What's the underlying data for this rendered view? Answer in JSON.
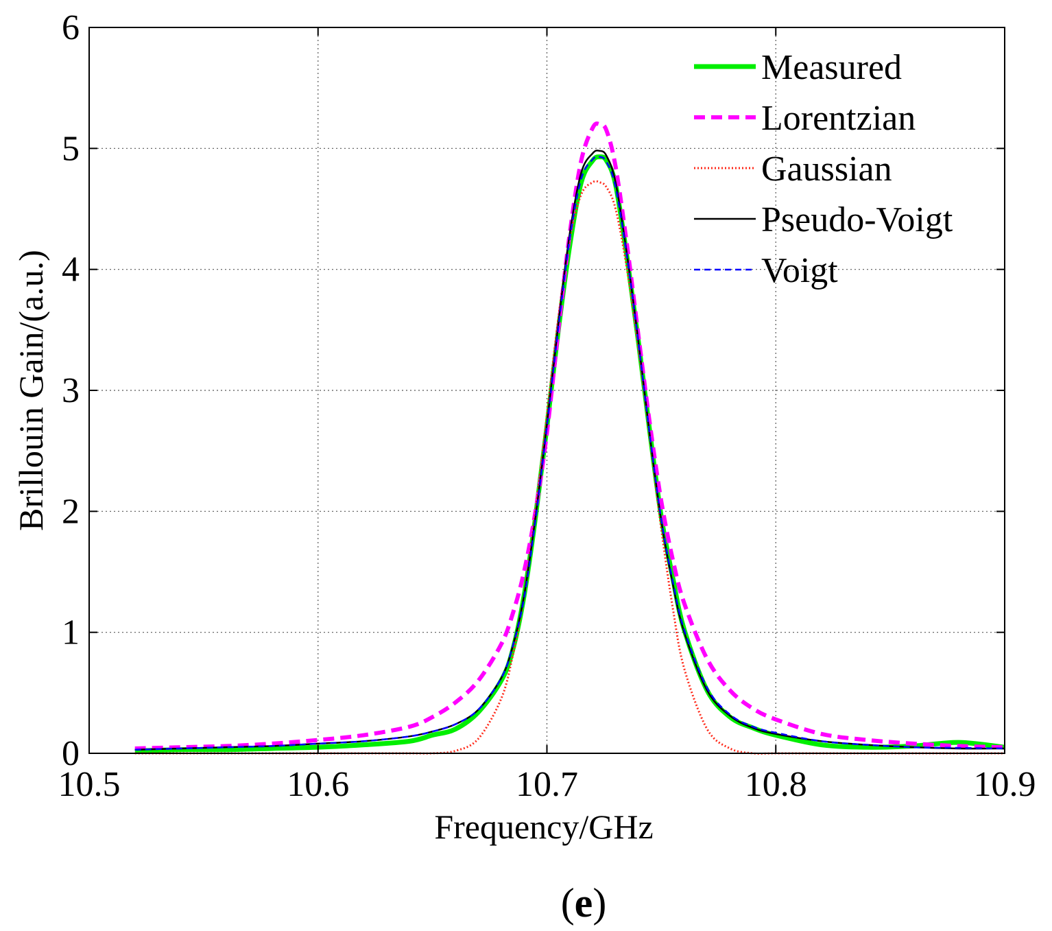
{
  "chart_data": {
    "type": "line",
    "title": "",
    "panel_label": "e",
    "xlabel": "Frequency/GHz",
    "ylabel": "Brillouin Gain/(a.u.)",
    "xlim": [
      10.5,
      10.9
    ],
    "ylim": [
      0,
      6
    ],
    "xticks": [
      10.5,
      10.6,
      10.7,
      10.8,
      10.9
    ],
    "xtick_labels": [
      "10.5",
      "10.6",
      "10.7",
      "10.8",
      "10.9"
    ],
    "yticks": [
      0,
      1,
      2,
      3,
      4,
      5,
      6
    ],
    "ytick_labels": [
      "0",
      "1",
      "2",
      "3",
      "4",
      "5",
      "6"
    ],
    "grid": true,
    "legend_position": "top-right",
    "x": [
      10.52,
      10.54,
      10.56,
      10.58,
      10.6,
      10.62,
      10.64,
      10.65,
      10.66,
      10.67,
      10.68,
      10.685,
      10.69,
      10.695,
      10.7,
      10.705,
      10.71,
      10.715,
      10.72,
      10.723,
      10.726,
      10.73,
      10.735,
      10.74,
      10.745,
      10.75,
      10.755,
      10.76,
      10.77,
      10.78,
      10.79,
      10.8,
      10.82,
      10.84,
      10.86,
      10.88,
      10.9
    ],
    "series": [
      {
        "name": "Measured",
        "color": "#00ee00",
        "style": "solid-thick",
        "values": [
          0.02,
          0.03,
          0.03,
          0.04,
          0.05,
          0.07,
          0.1,
          0.15,
          0.2,
          0.34,
          0.6,
          0.85,
          1.3,
          1.95,
          2.7,
          3.5,
          4.2,
          4.72,
          4.9,
          4.93,
          4.9,
          4.7,
          4.1,
          3.4,
          2.65,
          1.95,
          1.45,
          1.02,
          0.52,
          0.3,
          0.21,
          0.15,
          0.07,
          0.05,
          0.06,
          0.09,
          0.05
        ]
      },
      {
        "name": "Lorentzian",
        "color": "#ff00ff",
        "style": "dashed",
        "values": [
          0.04,
          0.05,
          0.06,
          0.08,
          0.11,
          0.15,
          0.22,
          0.3,
          0.42,
          0.6,
          0.9,
          1.15,
          1.5,
          2.0,
          2.65,
          3.5,
          4.3,
          4.9,
          5.17,
          5.2,
          5.15,
          4.85,
          4.2,
          3.45,
          2.72,
          2.08,
          1.6,
          1.24,
          0.78,
          0.52,
          0.37,
          0.28,
          0.16,
          0.11,
          0.08,
          0.06,
          0.05
        ]
      },
      {
        "name": "Gaussian",
        "color": "#ff2a1a",
        "style": "dotted",
        "values": [
          0.0,
          0.0,
          0.0,
          0.0,
          0.0,
          0.0,
          0.0,
          0.0,
          0.02,
          0.12,
          0.45,
          0.8,
          1.3,
          2.0,
          2.8,
          3.6,
          4.25,
          4.62,
          4.72,
          4.72,
          4.68,
          4.5,
          4.0,
          3.35,
          2.6,
          1.85,
          1.2,
          0.7,
          0.2,
          0.04,
          0.0,
          0.0,
          0.0,
          0.0,
          0.0,
          0.0,
          0.0
        ]
      },
      {
        "name": "Pseudo-Voigt",
        "color": "#000000",
        "style": "solid",
        "values": [
          0.03,
          0.04,
          0.05,
          0.06,
          0.08,
          0.1,
          0.14,
          0.18,
          0.24,
          0.36,
          0.62,
          0.88,
          1.3,
          1.95,
          2.72,
          3.55,
          4.3,
          4.8,
          4.96,
          4.98,
          4.94,
          4.72,
          4.12,
          3.4,
          2.62,
          1.92,
          1.4,
          1.0,
          0.52,
          0.31,
          0.21,
          0.16,
          0.1,
          0.07,
          0.05,
          0.04,
          0.04
        ]
      },
      {
        "name": "Voigt",
        "color": "#0000ff",
        "style": "dashed-thin",
        "values": [
          0.03,
          0.04,
          0.05,
          0.06,
          0.08,
          0.1,
          0.14,
          0.18,
          0.24,
          0.36,
          0.62,
          0.88,
          1.28,
          1.93,
          2.7,
          3.52,
          4.26,
          4.75,
          4.91,
          4.93,
          4.89,
          4.68,
          4.1,
          3.39,
          2.62,
          1.93,
          1.42,
          1.02,
          0.54,
          0.32,
          0.22,
          0.17,
          0.1,
          0.07,
          0.05,
          0.045,
          0.04
        ]
      }
    ]
  }
}
